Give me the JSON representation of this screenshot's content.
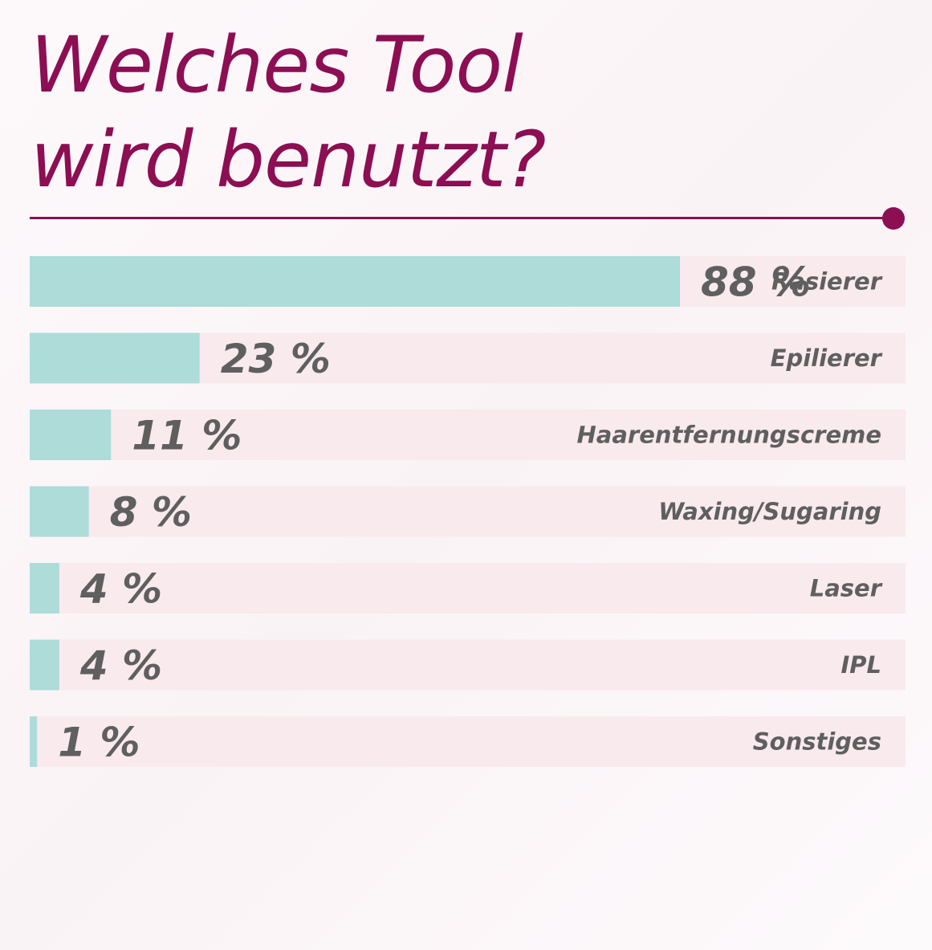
{
  "title": {
    "line1": "Welches Tool",
    "line2": "wird benutzt?"
  },
  "colors": {
    "accent": "#8c0e53",
    "bar_fill": "#addcd9",
    "bar_track": "#f9eaee",
    "label": "#5f5f5f"
  },
  "chart_data": {
    "type": "bar",
    "orientation": "horizontal",
    "categories": [
      "Rasierer",
      "Epilierer",
      "Haarentfernungscreme",
      "Waxing/Sugaring",
      "Laser",
      "IPL",
      "Sonstiges"
    ],
    "values": [
      88,
      23,
      11,
      8,
      4,
      4,
      1
    ],
    "value_labels": [
      "88 %",
      "23 %",
      "11 %",
      "8 %",
      "4 %",
      "4 %",
      "1 %"
    ],
    "unit": "%",
    "xlim": [
      0,
      100
    ],
    "grid": false
  }
}
